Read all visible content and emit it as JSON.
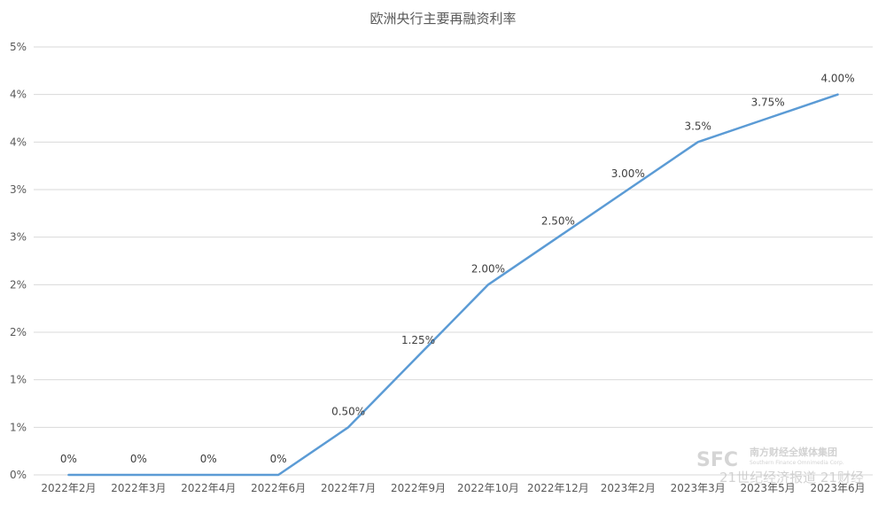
{
  "chart_data": {
    "type": "line",
    "title": "欧洲央行主要再融资利率",
    "xlabel": "",
    "ylabel": "",
    "categories": [
      "2022年2月",
      "2022年3月",
      "2022年4月",
      "2022年6月",
      "2022年7月",
      "2022年9月",
      "2022年10月",
      "2022年12月",
      "2023年2月",
      "2023年3月",
      "2023年5月",
      "2023年6月"
    ],
    "series": [
      {
        "values": [
          0,
          0,
          0,
          0,
          0.5,
          1.25,
          2.0,
          2.5,
          3.0,
          3.5,
          3.75,
          4.0
        ]
      }
    ],
    "data_labels": [
      "0%",
      "0%",
      "0%",
      "0%",
      "0.50%",
      "1.25%",
      "2.00%",
      "2.50%",
      "3.00%",
      "3.5%",
      "3.75%",
      "4.00%"
    ],
    "y_tick_labels": [
      "0%",
      "1%",
      "1%",
      "2%",
      "2%",
      "3%",
      "3%",
      "4%",
      "4%",
      "5%"
    ],
    "ylim": [
      0,
      4.5
    ],
    "y_tick_step": 0.5,
    "grid": true,
    "legend": "none",
    "line_color": "#5b9bd5"
  },
  "watermark": {
    "logo": "SFC",
    "group_name": "南方财经全媒体集团",
    "group_name_en": "Southern Finance Omnimedia Corp.",
    "line": "21世纪经济报道 21财经"
  }
}
